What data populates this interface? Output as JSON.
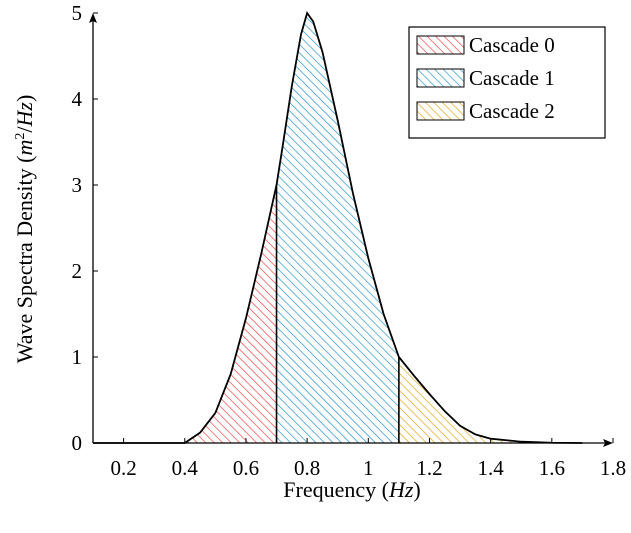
{
  "chart_data": {
    "type": "area",
    "title": "",
    "xlabel": {
      "text": "Frequency (",
      "unit": "Hz",
      "close": ")"
    },
    "ylabel": {
      "text": "Wave Spectra Density (",
      "unit": "m",
      "sup": "2",
      "slash": "/",
      "unit2": "Hz",
      "close": ")"
    },
    "xlim": [
      0.1,
      1.8
    ],
    "ylim": [
      0,
      5
    ],
    "xticks": [
      {
        "value": 0.2,
        "label": "0.2"
      },
      {
        "value": 0.4,
        "label": "0.4"
      },
      {
        "value": 0.6,
        "label": "0.6"
      },
      {
        "value": 0.8,
        "label": "0.8"
      },
      {
        "value": 1.0,
        "label": "1"
      },
      {
        "value": 1.2,
        "label": "1.2"
      },
      {
        "value": 1.4,
        "label": "1.4"
      },
      {
        "value": 1.6,
        "label": "1.6"
      },
      {
        "value": 1.8,
        "label": "1.8"
      }
    ],
    "yticks": [
      {
        "value": 0,
        "label": "0"
      },
      {
        "value": 1,
        "label": "1"
      },
      {
        "value": 2,
        "label": "2"
      },
      {
        "value": 3,
        "label": "3"
      },
      {
        "value": 4,
        "label": "4"
      },
      {
        "value": 5,
        "label": "5"
      }
    ],
    "curve": [
      [
        0.1,
        0
      ],
      [
        0.4,
        0
      ],
      [
        0.45,
        0.12
      ],
      [
        0.5,
        0.35
      ],
      [
        0.55,
        0.8
      ],
      [
        0.6,
        1.45
      ],
      [
        0.65,
        2.2
      ],
      [
        0.7,
        3.0
      ],
      [
        0.72,
        3.45
      ],
      [
        0.75,
        4.15
      ],
      [
        0.78,
        4.75
      ],
      [
        0.8,
        5.0
      ],
      [
        0.82,
        4.9
      ],
      [
        0.85,
        4.55
      ],
      [
        0.9,
        3.75
      ],
      [
        0.95,
        2.9
      ],
      [
        1.0,
        2.15
      ],
      [
        1.05,
        1.5
      ],
      [
        1.1,
        1.0
      ],
      [
        1.15,
        0.78
      ],
      [
        1.2,
        0.57
      ],
      [
        1.25,
        0.37
      ],
      [
        1.3,
        0.2
      ],
      [
        1.35,
        0.1
      ],
      [
        1.4,
        0.05
      ],
      [
        1.5,
        0.015
      ],
      [
        1.6,
        0.003
      ],
      [
        1.7,
        0
      ]
    ],
    "series": [
      {
        "name": "Cascade 0",
        "range": [
          0.4,
          0.7
        ],
        "color": "#e8474a"
      },
      {
        "name": "Cascade 1",
        "range": [
          0.7,
          1.1
        ],
        "color": "#2a95c8"
      },
      {
        "name": "Cascade 2",
        "range": [
          1.1,
          1.7
        ],
        "color": "#dca51c"
      }
    ],
    "legend": "top-right",
    "grid": false
  }
}
